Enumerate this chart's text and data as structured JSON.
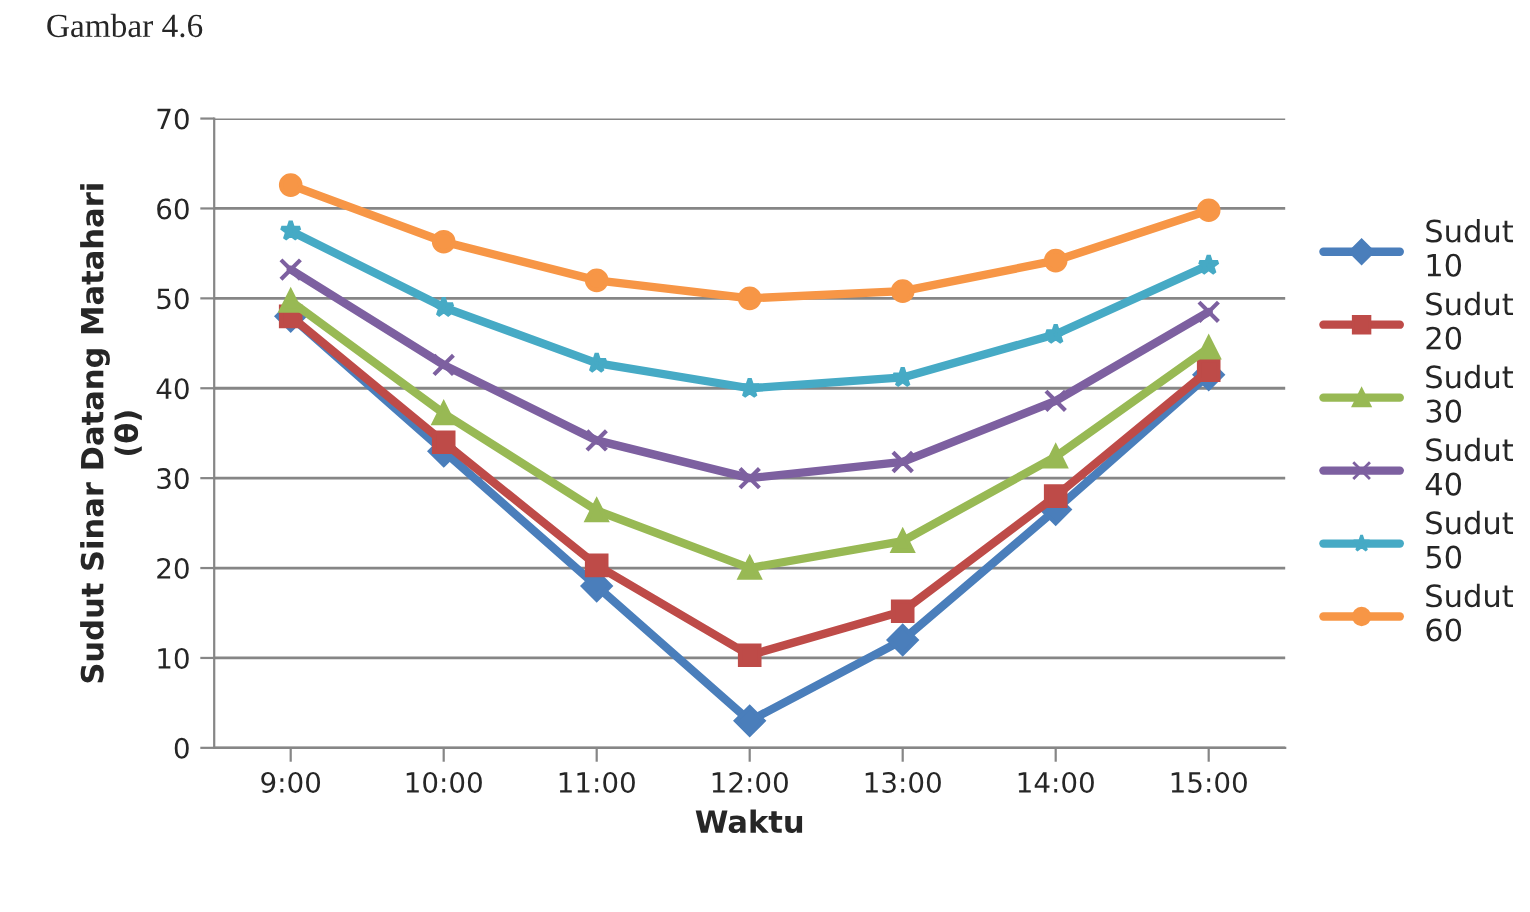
{
  "chart_data": {
    "type": "line",
    "xlabel": "Waktu",
    "ylabel": "Sudut Sinar Datang Matahari\n(θ)",
    "annotations": [
      "Gambar 4.6"
    ],
    "categories": [
      "9:00",
      "10:00",
      "11:00",
      "12:00",
      "13:00",
      "14:00",
      "15:00"
    ],
    "series": [
      {
        "name": "Sudut\n10",
        "color": "#4a7ebb",
        "marker": "diamond",
        "values": [
          48,
          33,
          18,
          3,
          12,
          26.5,
          41.5
        ]
      },
      {
        "name": "Sudut\n20",
        "color": "#be4b48",
        "marker": "square",
        "values": [
          48,
          34,
          20.3,
          10.3,
          15.2,
          28,
          42
        ]
      },
      {
        "name": "Sudut\n30",
        "color": "#98b954",
        "marker": "triangle",
        "values": [
          49.7,
          37.2,
          26.4,
          20,
          23,
          32.4,
          44.5
        ]
      },
      {
        "name": "Sudut\n40",
        "color": "#7d60a0",
        "marker": "cross",
        "values": [
          53.2,
          42.6,
          34.2,
          30,
          31.8,
          38.6,
          48.5
        ]
      },
      {
        "name": "Sudut\n50",
        "color": "#46aac5",
        "marker": "star",
        "values": [
          57.5,
          49,
          42.8,
          40,
          41.2,
          46,
          53.7
        ]
      },
      {
        "name": "Sudut\n60",
        "color": "#f79646",
        "marker": "circle",
        "values": [
          62.6,
          56.3,
          52,
          50,
          50.8,
          54.2,
          59.8
        ]
      }
    ],
    "ylim": [
      0,
      70
    ],
    "yticks": [
      0,
      10,
      20,
      30,
      40,
      50,
      60,
      70
    ],
    "grid": "y",
    "legend": "right"
  }
}
